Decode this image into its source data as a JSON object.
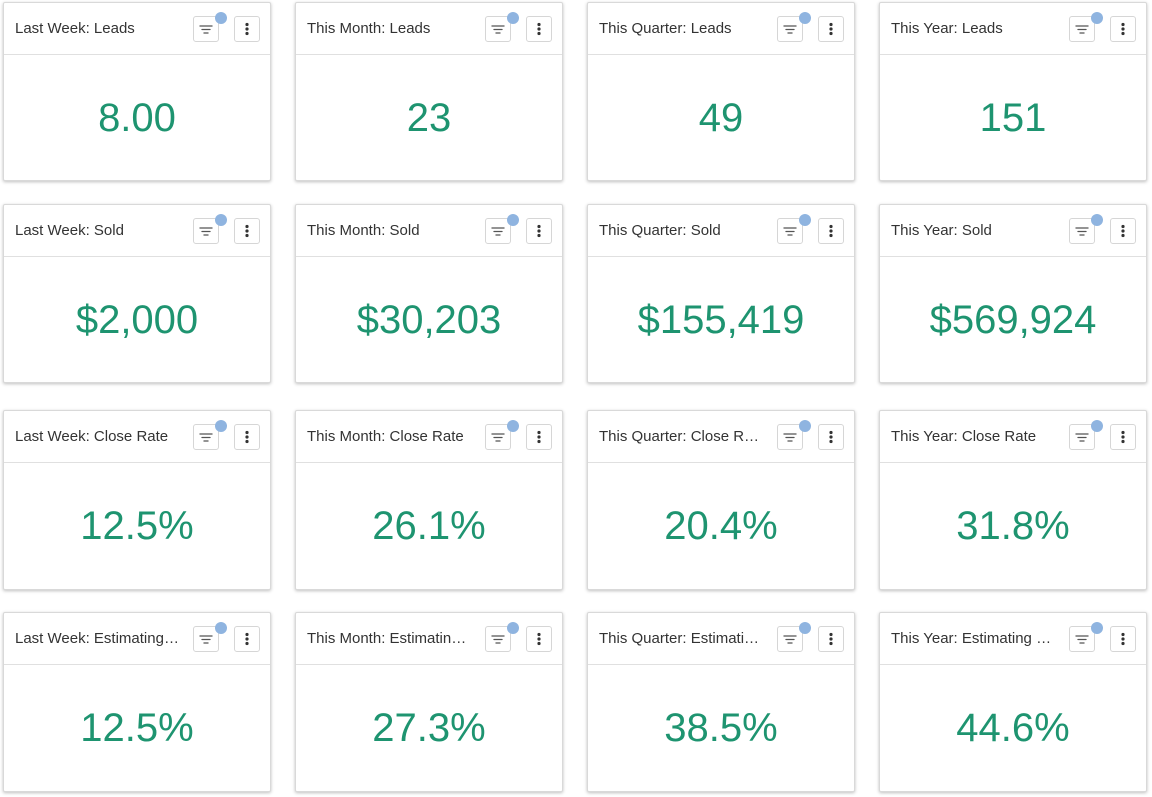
{
  "accent_color": "#1e9470",
  "badge_color": "#8fb4e0",
  "icons": {
    "filter": "filter-lines-icon",
    "menu": "kebab-menu-icon"
  },
  "rows": [
    {
      "cards": [
        {
          "title": "Last Week: Leads",
          "value": "8.00"
        },
        {
          "title": "This Month: Leads",
          "value": "23"
        },
        {
          "title": "This Quarter: Leads",
          "value": "49"
        },
        {
          "title": "This Year: Leads",
          "value": "151"
        }
      ]
    },
    {
      "cards": [
        {
          "title": "Last Week: Sold",
          "value": "$2,000"
        },
        {
          "title": "This Month: Sold",
          "value": "$30,203"
        },
        {
          "title": "This Quarter: Sold",
          "value": "$155,419"
        },
        {
          "title": "This Year: Sold",
          "value": "$569,924"
        }
      ]
    },
    {
      "cards": [
        {
          "title": "Last Week: Close Rate",
          "value": "12.5%"
        },
        {
          "title": "This Month: Close Rate",
          "value": "26.1%"
        },
        {
          "title": "This Quarter: Close Rate",
          "value": "20.4%"
        },
        {
          "title": "This Year: Close Rate",
          "value": "31.8%"
        }
      ]
    },
    {
      "cards": [
        {
          "title": "Last Week: Estimating ...",
          "value": "12.5%"
        },
        {
          "title": "This Month: Estimating ...",
          "value": "27.3%"
        },
        {
          "title": "This Quarter: Estimatin...",
          "value": "38.5%"
        },
        {
          "title": "This Year: Estimating C...",
          "value": "44.6%"
        }
      ]
    }
  ]
}
